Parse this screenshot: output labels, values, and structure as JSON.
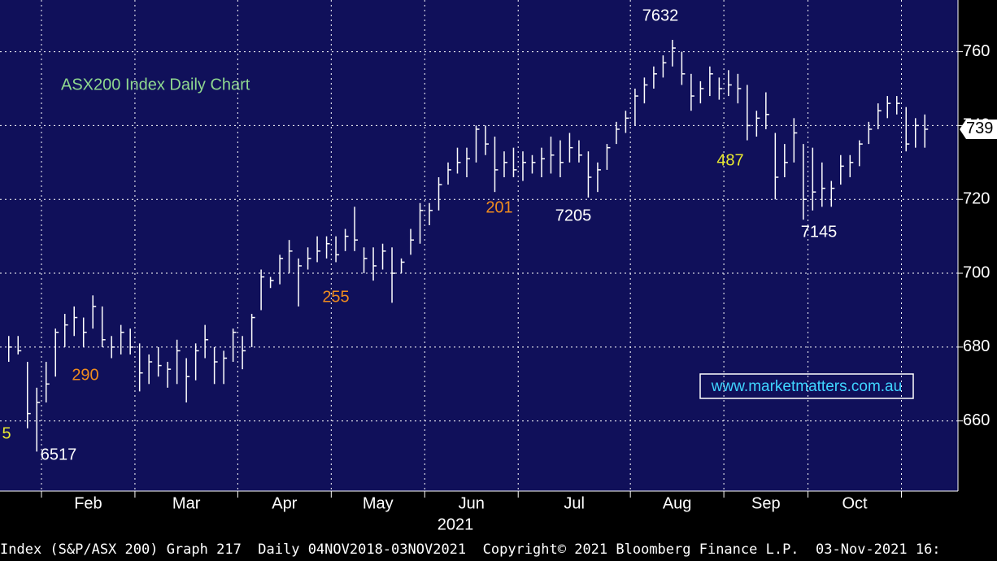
{
  "chart_data": {
    "type": "ohlc",
    "title": "ASX200 Index Daily Chart",
    "watermark": "www.marketmatters.com.au",
    "footer": "Index (S&P/ASX 200) Graph 217  Daily 04NOV2018-03NOV2021  Copyright© 2021 Bloomberg Finance L.P.  03-Nov-2021 16:",
    "year_label": "2021",
    "last_price_label": "739",
    "color": "#ffffff",
    "grid": true,
    "ylim": [
      6410,
      7740
    ],
    "yticks": [
      {
        "value": 6600,
        "label": "660"
      },
      {
        "value": 6800,
        "label": "680"
      },
      {
        "value": 7000,
        "label": "700"
      },
      {
        "value": 7200,
        "label": "720"
      },
      {
        "value": 7400,
        "label": "740"
      },
      {
        "value": 7600,
        "label": "760"
      }
    ],
    "annotations": [
      {
        "text": "5",
        "color": "#e8e830"
      },
      {
        "text": "6517",
        "color": "#ffffff"
      },
      {
        "text": "290",
        "color": "#f08c1e"
      },
      {
        "text": "255",
        "color": "#f08c1e"
      },
      {
        "text": "201",
        "color": "#f08c1e"
      },
      {
        "text": "7205",
        "color": "#ffffff"
      },
      {
        "text": "7632",
        "color": "#ffffff"
      },
      {
        "text": "487",
        "color": "#e8e830"
      },
      {
        "text": "7145",
        "color": "#ffffff"
      }
    ],
    "categories": [
      null,
      "Feb",
      "Mar",
      "Apr",
      "May",
      "Jun",
      "Jul",
      "Aug",
      "Sep",
      "Oct",
      null
    ],
    "series": [
      {
        "name": "ASX 200",
        "values": [
          [
            [
              6830,
              6760,
              6800
            ],
            [
              6830,
              6780,
              6790
            ],
            [
              6760,
              6580,
              6620
            ],
            [
              6690,
              6517,
              6650
            ]
          ],
          [
            [
              6760,
              6650,
              6700
            ],
            [
              6850,
              6720,
              6840
            ],
            [
              6890,
              6800,
              6860
            ],
            [
              6910,
              6830,
              6880
            ],
            [
              6880,
              6800,
              6840
            ],
            [
              6940,
              6850,
              6910
            ],
            [
              6910,
              6800,
              6820
            ],
            [
              6830,
              6770,
              6800
            ],
            [
              6860,
              6780,
              6840
            ],
            [
              6850,
              6780,
              6800
            ]
          ],
          [
            [
              6810,
              6680,
              6730
            ],
            [
              6780,
              6700,
              6760
            ],
            [
              6800,
              6720,
              6750
            ],
            [
              6760,
              6690,
              6740
            ],
            [
              6820,
              6700,
              6790
            ],
            [
              6770,
              6650,
              6720
            ],
            [
              6810,
              6710,
              6790
            ],
            [
              6860,
              6770,
              6820
            ],
            [
              6800,
              6700,
              6760
            ],
            [
              6790,
              6700,
              6770
            ],
            [
              6850,
              6760,
              6840
            ]
          ],
          [
            [
              6830,
              6740,
              6790
            ],
            [
              6890,
              6800,
              6880
            ],
            [
              7010,
              6900,
              6990
            ],
            [
              6990,
              6960,
              6980
            ],
            [
              7050,
              6970,
              7040
            ],
            [
              7090,
              7000,
              7060
            ],
            [
              7040,
              6910,
              7020
            ],
            [
              7070,
              7010,
              7040
            ],
            [
              7100,
              7030,
              7060
            ],
            [
              7100,
              7040,
              7080
            ]
          ],
          [
            [
              7100,
              7030,
              7050
            ],
            [
              7120,
              7060,
              7100
            ],
            [
              7180,
              7060,
              7090
            ],
            [
              7070,
              7000,
              7040
            ],
            [
              7070,
              6980,
              7020
            ],
            [
              7080,
              7010,
              7060
            ],
            [
              7070,
              6920,
              7000
            ],
            [
              7040,
              7000,
              7030
            ],
            [
              7120,
              7050,
              7090
            ],
            [
              7190,
              7080,
              7170
            ]
          ],
          [
            [
              7190,
              7130,
              7170
            ],
            [
              7260,
              7170,
              7240
            ],
            [
              7300,
              7240,
              7280
            ],
            [
              7340,
              7270,
              7300
            ],
            [
              7340,
              7260,
              7310
            ],
            [
              7400,
              7300,
              7390
            ],
            [
              7400,
              7320,
              7350
            ],
            [
              7370,
              7220,
              7280
            ],
            [
              7330,
              7260,
              7300
            ],
            [
              7340,
              7260,
              7280
            ]
          ],
          [
            [
              7330,
              7250,
              7300
            ],
            [
              7320,
              7270,
              7300
            ],
            [
              7340,
              7260,
              7310
            ],
            [
              7370,
              7270,
              7320
            ],
            [
              7360,
              7260,
              7300
            ],
            [
              7380,
              7300,
              7340
            ],
            [
              7360,
              7300,
              7320
            ],
            [
              7330,
              7205,
              7260
            ],
            [
              7300,
              7220,
              7280
            ],
            [
              7350,
              7280,
              7340
            ],
            [
              7410,
              7350,
              7390
            ],
            [
              7440,
              7380,
              7420
            ]
          ],
          [
            [
              7500,
              7400,
              7480
            ],
            [
              7530,
              7460,
              7510
            ],
            [
              7560,
              7500,
              7540
            ],
            [
              7590,
              7530,
              7570
            ],
            [
              7632,
              7560,
              7610
            ],
            [
              7600,
              7510,
              7540
            ],
            [
              7540,
              7440,
              7480
            ],
            [
              7520,
              7460,
              7500
            ],
            [
              7560,
              7480,
              7540
            ],
            [
              7530,
              7470,
              7500
            ]
          ],
          [
            [
              7550,
              7480,
              7510
            ],
            [
              7540,
              7460,
              7500
            ],
            [
              7510,
              7360,
              7400
            ],
            [
              7440,
              7370,
              7420
            ],
            [
              7490,
              7390,
              7430
            ],
            [
              7380,
              7200,
              7260
            ],
            [
              7350,
              7260,
              7300
            ],
            [
              7420,
              7300,
              7380
            ],
            [
              7350,
              7145,
              7200
            ]
          ],
          [
            [
              7340,
              7170,
              7220
            ],
            [
              7300,
              7180,
              7230
            ],
            [
              7250,
              7180,
              7230
            ],
            [
              7320,
              7240,
              7290
            ],
            [
              7320,
              7260,
              7300
            ],
            [
              7360,
              7290,
              7350
            ],
            [
              7410,
              7350,
              7390
            ],
            [
              7460,
              7390,
              7440
            ],
            [
              7480,
              7420,
              7460
            ],
            [
              7480,
              7430,
              7460
            ]
          ],
          [
            [
              7450,
              7330,
              7350
            ],
            [
              7420,
              7340,
              7400
            ],
            [
              7430,
              7340,
              7390
            ]
          ]
        ]
      }
    ]
  }
}
